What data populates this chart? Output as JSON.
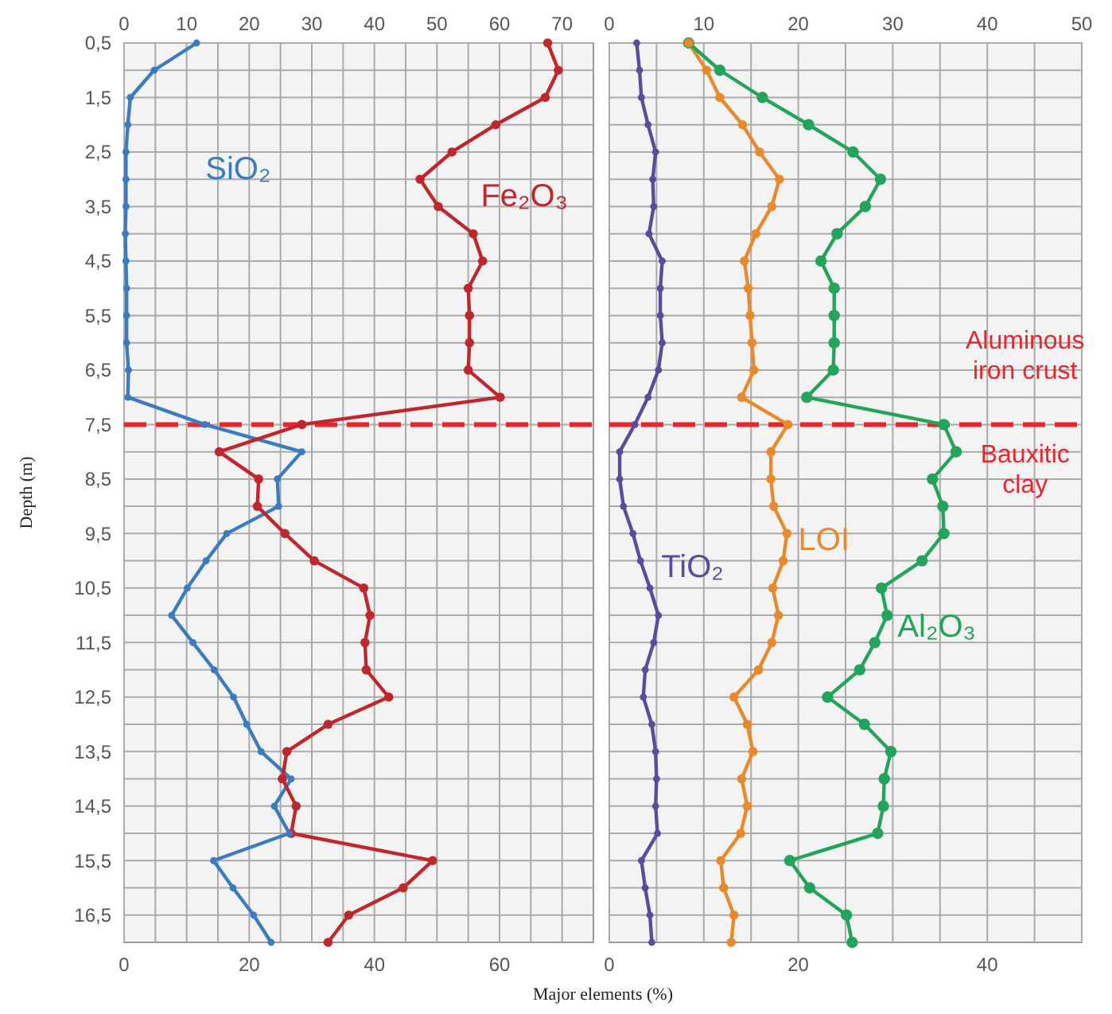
{
  "chart_data": [
    {
      "type": "line",
      "ylabel": "Depth (m)",
      "xlabel": "Major elements (%)",
      "xlim": [
        0,
        75
      ],
      "x2lim": [
        0,
        75
      ],
      "ylim": [
        17,
        0.5
      ],
      "grid": true,
      "marker": "circle",
      "xticks": [
        0,
        20,
        40,
        60
      ],
      "x2ticks": [
        0,
        {
          "value": 5,
          "label": null
        },
        10,
        {
          "value": 15,
          "label": null
        },
        20,
        {
          "value": 25,
          "label": null
        },
        30,
        {
          "value": 35,
          "label": null
        },
        40,
        {
          "value": 45,
          "label": null
        },
        50,
        {
          "value": 55,
          "label": null
        },
        60,
        {
          "value": 65,
          "label": null
        },
        70
      ],
      "yticks": [
        {
          "value": 0.5,
          "label": "0,5"
        },
        {
          "value": 1,
          "label": null
        },
        {
          "value": 1.5,
          "label": "1,5"
        },
        {
          "value": 2,
          "label": null
        },
        {
          "value": 2.5,
          "label": "2,5"
        },
        {
          "value": 3,
          "label": null
        },
        {
          "value": 3.5,
          "label": "3,5"
        },
        {
          "value": 4,
          "label": null
        },
        {
          "value": 4.5,
          "label": "4,5"
        },
        {
          "value": 5,
          "label": null
        },
        {
          "value": 5.5,
          "label": "5,5"
        },
        {
          "value": 6,
          "label": null
        },
        {
          "value": 6.5,
          "label": "6,5"
        },
        {
          "value": 7,
          "label": null
        },
        {
          "value": 7.5,
          "label": "7,5"
        },
        {
          "value": 8,
          "label": null
        },
        {
          "value": 8.5,
          "label": "8,5"
        },
        {
          "value": 9,
          "label": null
        },
        {
          "value": 9.5,
          "label": "9,5"
        },
        {
          "value": 10,
          "label": null
        },
        {
          "value": 10.5,
          "label": "10,5"
        },
        {
          "value": 11,
          "label": null
        },
        {
          "value": 11.5,
          "label": "11,5"
        },
        {
          "value": 12,
          "label": null
        },
        {
          "value": 12.5,
          "label": "12,5"
        },
        {
          "value": 13,
          "label": null
        },
        {
          "value": 13.5,
          "label": "13,5"
        },
        {
          "value": 14,
          "label": null
        },
        {
          "value": 14.5,
          "label": "14,5"
        },
        {
          "value": 15,
          "label": null
        },
        {
          "value": 15.5,
          "label": "15,5"
        },
        {
          "value": 16,
          "label": null
        },
        {
          "value": 16.5,
          "label": "16,5"
        }
      ],
      "ref_lines": [
        {
          "axis": "y",
          "value": 7.5,
          "color": "#e8262b",
          "line_style": "dashed"
        }
      ],
      "series": [
        {
          "name": "SiO₂",
          "color": "#3b7bbf",
          "x": [
            11.6,
            4.8,
            1.0,
            0.6,
            0.3,
            0.3,
            0.3,
            0.2,
            0.3,
            0.4,
            0.4,
            0.4,
            0.7,
            0.6,
            12.9,
            28.4,
            24.5,
            24.7,
            16.4,
            13.1,
            10.1,
            7.6,
            11.0,
            14.4,
            17.5,
            19.6,
            21.9,
            26.7,
            24.0,
            26.4,
            14.3,
            17.4,
            20.7,
            23.5
          ],
          "values": [
            0.5,
            1,
            1.5,
            2,
            2.5,
            3,
            3.5,
            4,
            4.5,
            5,
            5.5,
            6,
            6.5,
            7,
            7.5,
            8,
            8.5,
            9,
            9.5,
            10,
            10.5,
            11,
            11.5,
            12,
            12.5,
            13,
            13.5,
            14,
            14.5,
            15,
            15.5,
            16,
            16.5,
            17
          ]
        },
        {
          "name": "Fe₂O₃",
          "color": "#c0272d",
          "x": [
            67.7,
            69.4,
            67.3,
            59.4,
            52.4,
            47.3,
            50.2,
            55.8,
            57.3,
            55.0,
            55.2,
            55.2,
            55.0,
            60.1,
            28.4,
            15.2,
            21.5,
            21.3,
            25.7,
            30.4,
            38.3,
            39.3,
            38.5,
            38.7,
            42.3,
            32.6,
            26.0,
            25.3,
            27.5,
            26.7,
            49.3,
            44.6,
            35.9,
            32.6
          ],
          "values": [
            0.5,
            1,
            1.5,
            2,
            2.5,
            3,
            3.5,
            4,
            4.5,
            5,
            5.5,
            6,
            6.5,
            7,
            7.5,
            8,
            8.5,
            9,
            9.5,
            10,
            10.5,
            11,
            11.5,
            12,
            12.5,
            13,
            13.5,
            14,
            14.5,
            15,
            15.5,
            16,
            16.5,
            17
          ]
        }
      ]
    },
    {
      "type": "line",
      "xlim": [
        0,
        50
      ],
      "x2lim": [
        0,
        50
      ],
      "ylim": [
        17,
        0.5
      ],
      "grid": true,
      "marker": "circle",
      "tick_labels": "x",
      "xticks": [
        0,
        20,
        40
      ],
      "x2ticks": [
        0,
        {
          "value": 5,
          "label": null
        },
        10,
        {
          "value": 15,
          "label": null
        },
        20,
        {
          "value": 25,
          "label": null
        },
        30,
        {
          "value": 35,
          "label": null
        },
        40,
        {
          "value": 45,
          "label": null
        },
        50
      ],
      "yticks": [
        0.5,
        1,
        1.5,
        2,
        2.5,
        3,
        3.5,
        4,
        4.5,
        5,
        5.5,
        6,
        6.5,
        7,
        7.5,
        8,
        8.5,
        9,
        9.5,
        10,
        10.5,
        11,
        11.5,
        12,
        12.5,
        13,
        13.5,
        14,
        14.5,
        15,
        15.5,
        16,
        16.5
      ],
      "ref_lines": [
        {
          "axis": "y",
          "value": 7.5,
          "color": "#e8262b",
          "line_style": "dashed"
        }
      ],
      "annotations": [
        "Aluminous iron crust",
        "Bauxitic clay"
      ],
      "series": [
        {
          "name": "TiO₂",
          "color": "#5e4a9c",
          "x": [
            2.9,
            3.2,
            3.4,
            4.1,
            4.9,
            4.6,
            4.7,
            4.2,
            5.6,
            5.4,
            5.4,
            5.6,
            5.2,
            4.1,
            2.7,
            1.1,
            1.1,
            1.5,
            2.5,
            3.3,
            4.3,
            5.2,
            4.7,
            3.8,
            3.6,
            4.5,
            4.9,
            5.0,
            4.9,
            5.1,
            3.4,
            3.8,
            4.3,
            4.5
          ],
          "values": [
            0.5,
            1,
            1.5,
            2,
            2.5,
            3,
            3.5,
            4,
            4.5,
            5,
            5.5,
            6,
            6.5,
            7,
            7.5,
            8,
            8.5,
            9,
            9.5,
            10,
            10.5,
            11,
            11.5,
            12,
            12.5,
            13,
            13.5,
            14,
            14.5,
            15,
            15.5,
            16,
            16.5,
            17
          ]
        },
        {
          "name": "LOI",
          "color": "#e8892b",
          "x": [
            8.4,
            10.3,
            11.7,
            14.1,
            15.9,
            18.0,
            17.2,
            15.5,
            14.3,
            14.7,
            14.9,
            15.1,
            15.3,
            14.0,
            18.9,
            17.1,
            17.1,
            17.4,
            18.8,
            18.4,
            17.3,
            17.9,
            17.2,
            15.8,
            13.2,
            14.6,
            15.2,
            14.0,
            14.6,
            13.9,
            11.8,
            12.1,
            13.2,
            12.9
          ],
          "values": [
            0.5,
            1,
            1.5,
            2,
            2.5,
            3,
            3.5,
            4,
            4.5,
            5,
            5.5,
            6,
            6.5,
            7,
            7.5,
            8,
            8.5,
            9,
            9.5,
            10,
            10.5,
            11,
            11.5,
            12,
            12.5,
            13,
            13.5,
            14,
            14.5,
            15,
            15.5,
            16,
            16.5,
            17
          ]
        },
        {
          "name": "Al₂O₃",
          "color": "#22a55a",
          "x": [
            8.4,
            11.7,
            16.2,
            21.1,
            25.8,
            28.7,
            27.1,
            24.1,
            22.4,
            23.8,
            23.8,
            23.8,
            23.7,
            20.9,
            35.4,
            36.7,
            34.2,
            35.3,
            35.4,
            33.1,
            28.8,
            29.4,
            28.1,
            26.5,
            23.1,
            27.0,
            29.8,
            29.1,
            29.0,
            28.4,
            19.1,
            21.2,
            25.1,
            25.7
          ],
          "values": [
            0.5,
            1,
            1.5,
            2,
            2.5,
            3,
            3.5,
            4,
            4.5,
            5,
            5.5,
            6,
            6.5,
            7,
            7.5,
            8,
            8.5,
            9,
            9.5,
            10,
            10.5,
            11,
            11.5,
            12,
            12.5,
            13,
            13.5,
            14,
            14.5,
            15,
            15.5,
            16,
            16.5,
            17
          ]
        }
      ]
    }
  ]
}
